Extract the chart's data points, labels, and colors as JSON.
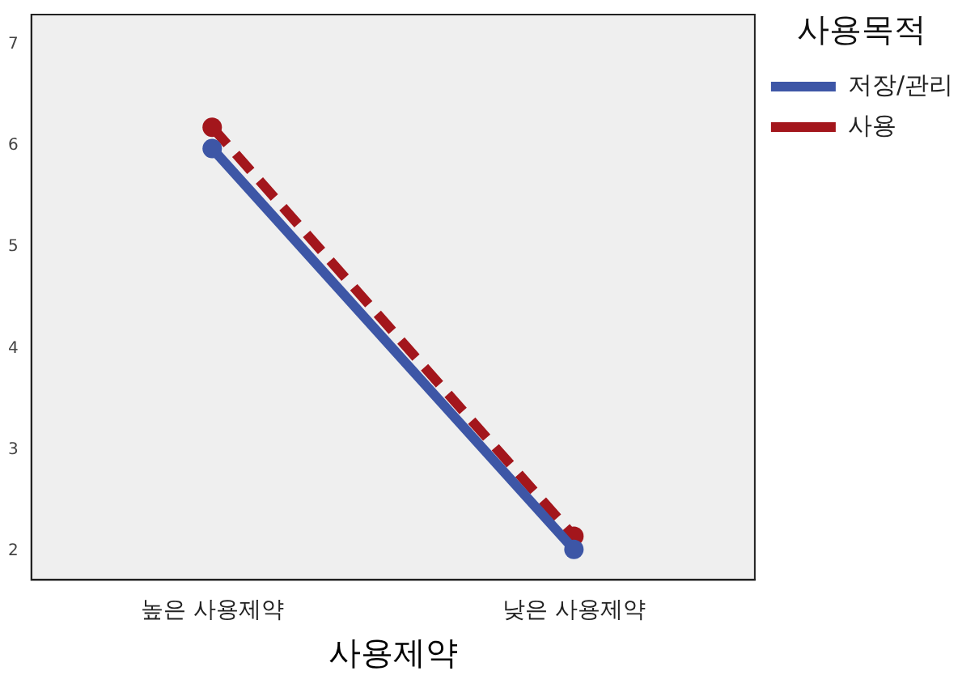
{
  "chart_data": {
    "type": "line",
    "xlabel": "사용제약",
    "legend_title": "사용목적",
    "categories": [
      "높은 사용제약",
      "낮은 사용제약"
    ],
    "series": [
      {
        "name": "저장/관리",
        "color": "#3d56a6",
        "values": [
          5.97,
          2.02
        ],
        "line_style": "solid"
      },
      {
        "name": "사용",
        "color": "#a3161c",
        "values": [
          6.18,
          2.15
        ],
        "line_style": "dashed"
      }
    ],
    "ylim": [
      1.72,
      7.29
    ],
    "yticks": [
      2,
      3,
      4,
      5,
      6,
      7
    ],
    "grid": false,
    "legend": "top right",
    "marker": "circle"
  }
}
